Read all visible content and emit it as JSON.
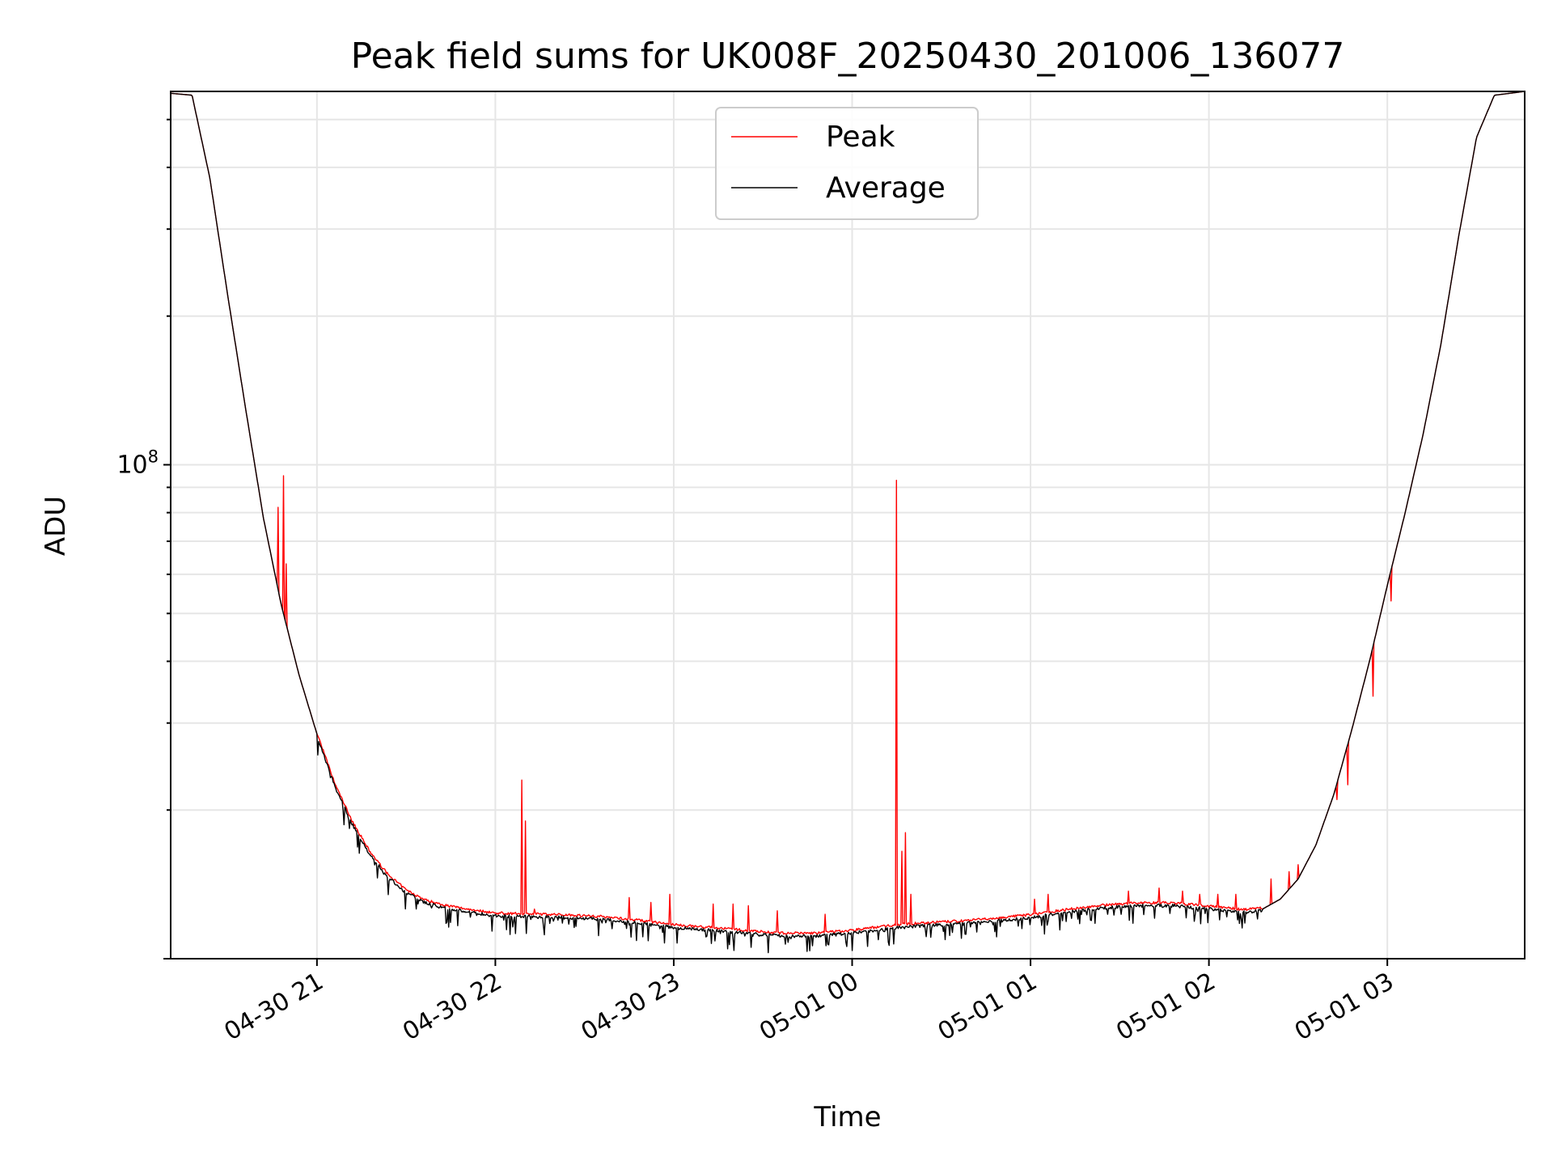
{
  "chart_data": {
    "type": "line",
    "title": "Peak field sums for UK008F_20250430_201006_136077",
    "xlabel": "Time",
    "ylabel": "ADU",
    "yscale": "log",
    "y_major_tick": {
      "value": 100000000,
      "base": "10",
      "exponent": "8"
    },
    "xlim_hours": [
      20.18,
      27.77
    ],
    "ylim": [
      10000000,
      570000000
    ],
    "x_ticks": [
      {
        "hour": 21,
        "label": "04-30 21"
      },
      {
        "hour": 22,
        "label": "04-30 22"
      },
      {
        "hour": 23,
        "label": "04-30 23"
      },
      {
        "hour": 24,
        "label": "05-01 00"
      },
      {
        "hour": 25,
        "label": "05-01 01"
      },
      {
        "hour": 26,
        "label": "05-01 02"
      },
      {
        "hour": 27,
        "label": "05-01 03"
      }
    ],
    "grid": true,
    "legend_position": "upper-center",
    "series": [
      {
        "name": "Peak",
        "color": "#ff0000"
      },
      {
        "name": "Average",
        "color": "#000000"
      }
    ],
    "x_hours": [
      20.18,
      20.3,
      20.4,
      20.5,
      20.6,
      20.7,
      20.8,
      20.9,
      21.0,
      21.1,
      21.2,
      21.3,
      21.4,
      21.5,
      21.6,
      21.7,
      21.8,
      21.9,
      22.0,
      22.2,
      22.4,
      22.6,
      22.8,
      23.0,
      23.2,
      23.4,
      23.6,
      23.8,
      24.0,
      24.2,
      24.4,
      24.6,
      24.8,
      25.0,
      25.2,
      25.4,
      25.6,
      25.8,
      26.0,
      26.2,
      26.3,
      26.4,
      26.5,
      26.6,
      26.7,
      26.8,
      26.9,
      27.0,
      27.1,
      27.2,
      27.3,
      27.4,
      27.5,
      27.6,
      27.77
    ],
    "average_values": [
      565000000,
      560000000,
      380000000,
      220000000,
      130000000,
      78000000,
      52000000,
      37500000,
      28500000,
      22500000,
      18800000,
      16300000,
      14700000,
      13700000,
      13100000,
      12800000,
      12600000,
      12450000,
      12300000,
      12250000,
      12200000,
      12100000,
      11900000,
      11650000,
      11500000,
      11350000,
      11200000,
      11200000,
      11350000,
      11600000,
      11750000,
      11850000,
      12000000,
      12200000,
      12500000,
      12750000,
      12900000,
      12900000,
      12700000,
      12500000,
      12600000,
      13200000,
      14500000,
      17000000,
      21500000,
      29000000,
      40000000,
      57000000,
      80000000,
      115000000,
      175000000,
      290000000,
      460000000,
      560000000,
      570000000
    ],
    "peak_spikes": [
      {
        "hour": 20.78,
        "value": 82000000
      },
      {
        "hour": 20.81,
        "value": 95000000
      },
      {
        "hour": 20.83,
        "value": 63000000
      },
      {
        "hour": 22.15,
        "value": 23000000
      },
      {
        "hour": 22.17,
        "value": 19000000
      },
      {
        "hour": 22.22,
        "value": 12600000
      },
      {
        "hour": 22.75,
        "value": 13300000
      },
      {
        "hour": 22.87,
        "value": 13000000
      },
      {
        "hour": 22.98,
        "value": 13500000
      },
      {
        "hour": 23.22,
        "value": 12900000
      },
      {
        "hour": 23.33,
        "value": 12900000
      },
      {
        "hour": 23.42,
        "value": 12800000
      },
      {
        "hour": 23.58,
        "value": 12500000
      },
      {
        "hour": 23.85,
        "value": 12300000
      },
      {
        "hour": 24.25,
        "value": 93000000
      },
      {
        "hour": 24.28,
        "value": 16500000
      },
      {
        "hour": 24.3,
        "value": 18000000
      },
      {
        "hour": 24.33,
        "value": 13500000
      },
      {
        "hour": 25.02,
        "value": 13200000
      },
      {
        "hour": 25.1,
        "value": 13500000
      },
      {
        "hour": 25.55,
        "value": 13700000
      },
      {
        "hour": 25.72,
        "value": 13900000
      },
      {
        "hour": 25.85,
        "value": 13700000
      },
      {
        "hour": 25.95,
        "value": 13500000
      },
      {
        "hour": 26.05,
        "value": 13500000
      },
      {
        "hour": 26.15,
        "value": 13500000
      },
      {
        "hour": 26.35,
        "value": 14500000
      },
      {
        "hour": 26.45,
        "value": 15000000
      },
      {
        "hour": 26.5,
        "value": 15500000
      },
      {
        "hour": 26.72,
        "value": 21000000
      },
      {
        "hour": 26.78,
        "value": 22500000
      },
      {
        "hour": 26.92,
        "value": 34000000
      },
      {
        "hour": 27.02,
        "value": 53000000
      }
    ]
  }
}
